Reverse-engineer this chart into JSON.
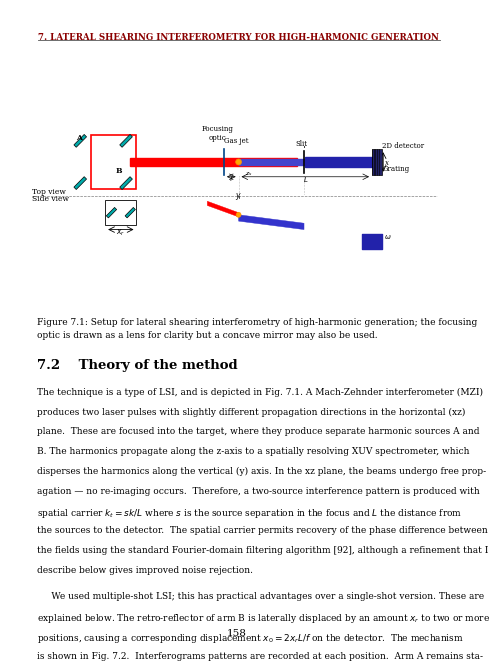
{
  "header": "7. LATERAL SHEARING INTERFEROMETRY FOR HIGH-HARMONIC GENERATION",
  "figure_caption": "Figure 7.1: Setup for lateral shearing interferometry of high-harmonic generation; the focusing\noptic is drawn as a lens for clarity but a concave mirror may also be used.",
  "section_title": "7.2    Theory of the method",
  "body_para1": "The technique is a type of LSI, and is depicted in Fig. 7.1. A Mach-Zehnder interferometer (MZI)\nproduces two laser pulses with slightly different propagation directions in the horizontal (xz)\nplane. These are focused into the target, where they produce separate harmonic sources A and\nB. The harmonics propagate along the z-axis to a spatially resolving XUV spectrometer, which\ndisperses the harmonics along the vertical (y) axis. In the xz plane, the beams undergo free prop-\nagation — no re-imaging occurs. Therefore, a two-source interference pattern is produced with\nspatial carrier kₜ = sk/L where s is the source separation in the focus and L the distance from\nthe sources to the detector. The spatial carrier permits recovery of the phase difference between\nthe fields using the standard Fourier-domain filtering algorithm [92], although a refinement that I\ndescribe below gives improved noise rejection.",
  "body_para2": "We used multiple-shot LSI; this has practical advantages over a single-shot version. These are\nexplained below. The retro-reflector of arm B is laterally displaced by an amount xᵣ to two or more\npositions, causing a corresponding displacement x₀ = 2xᵣL/f on the detector. The mechanism\nis shown in Fig. 7.2. Interferograms patterns are recorded at each position. Arm A remains sta-",
  "page_number": "158",
  "bg_color": "#ffffff",
  "text_color": "#000000",
  "header_color": "#8b0000",
  "line_color": "#555555"
}
